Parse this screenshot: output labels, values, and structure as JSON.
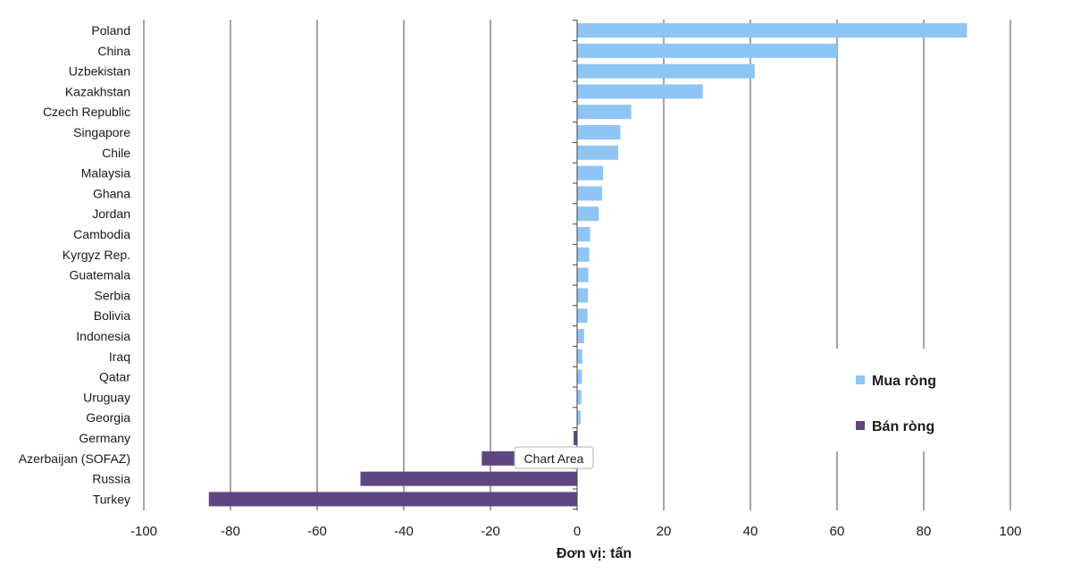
{
  "chart_data": {
    "type": "bar",
    "orientation": "horizontal",
    "categories": [
      "Poland",
      "China",
      "Uzbekistan",
      "Kazakhstan",
      "Czech Republic",
      "Singapore",
      "Chile",
      "Malaysia",
      "Ghana",
      "Jordan",
      "Cambodia",
      "Kyrgyz Rep.",
      "Guatemala",
      "Serbia",
      "Bolivia",
      "Indonesia",
      "Iraq",
      "Qatar",
      "Uruguay",
      "Georgia",
      "Germany",
      "Azerbaijan (SOFAZ)",
      "Russia",
      "Turkey"
    ],
    "values": [
      90,
      60,
      41,
      29,
      12.5,
      10,
      9.5,
      6,
      5.8,
      5,
      3,
      2.8,
      2.6,
      2.5,
      2.4,
      1.6,
      1.2,
      1.1,
      1.0,
      0.8,
      -0.8,
      -22,
      -50,
      -85
    ],
    "series": [
      {
        "name": "Mua ròng",
        "color": "#8ec5f4",
        "rule": "positive"
      },
      {
        "name": "Bán ròng",
        "color": "#5e4680",
        "rule": "negative"
      }
    ],
    "xlim": [
      -100,
      100
    ],
    "xticks": [
      "-100",
      "-80",
      "-60",
      "-40",
      "-20",
      "0",
      "20",
      "40",
      "60",
      "80",
      "100"
    ],
    "xlabel": "Đơn vị: tấn",
    "grid": true,
    "legend_position": "right",
    "tooltip": "Chart Area"
  }
}
